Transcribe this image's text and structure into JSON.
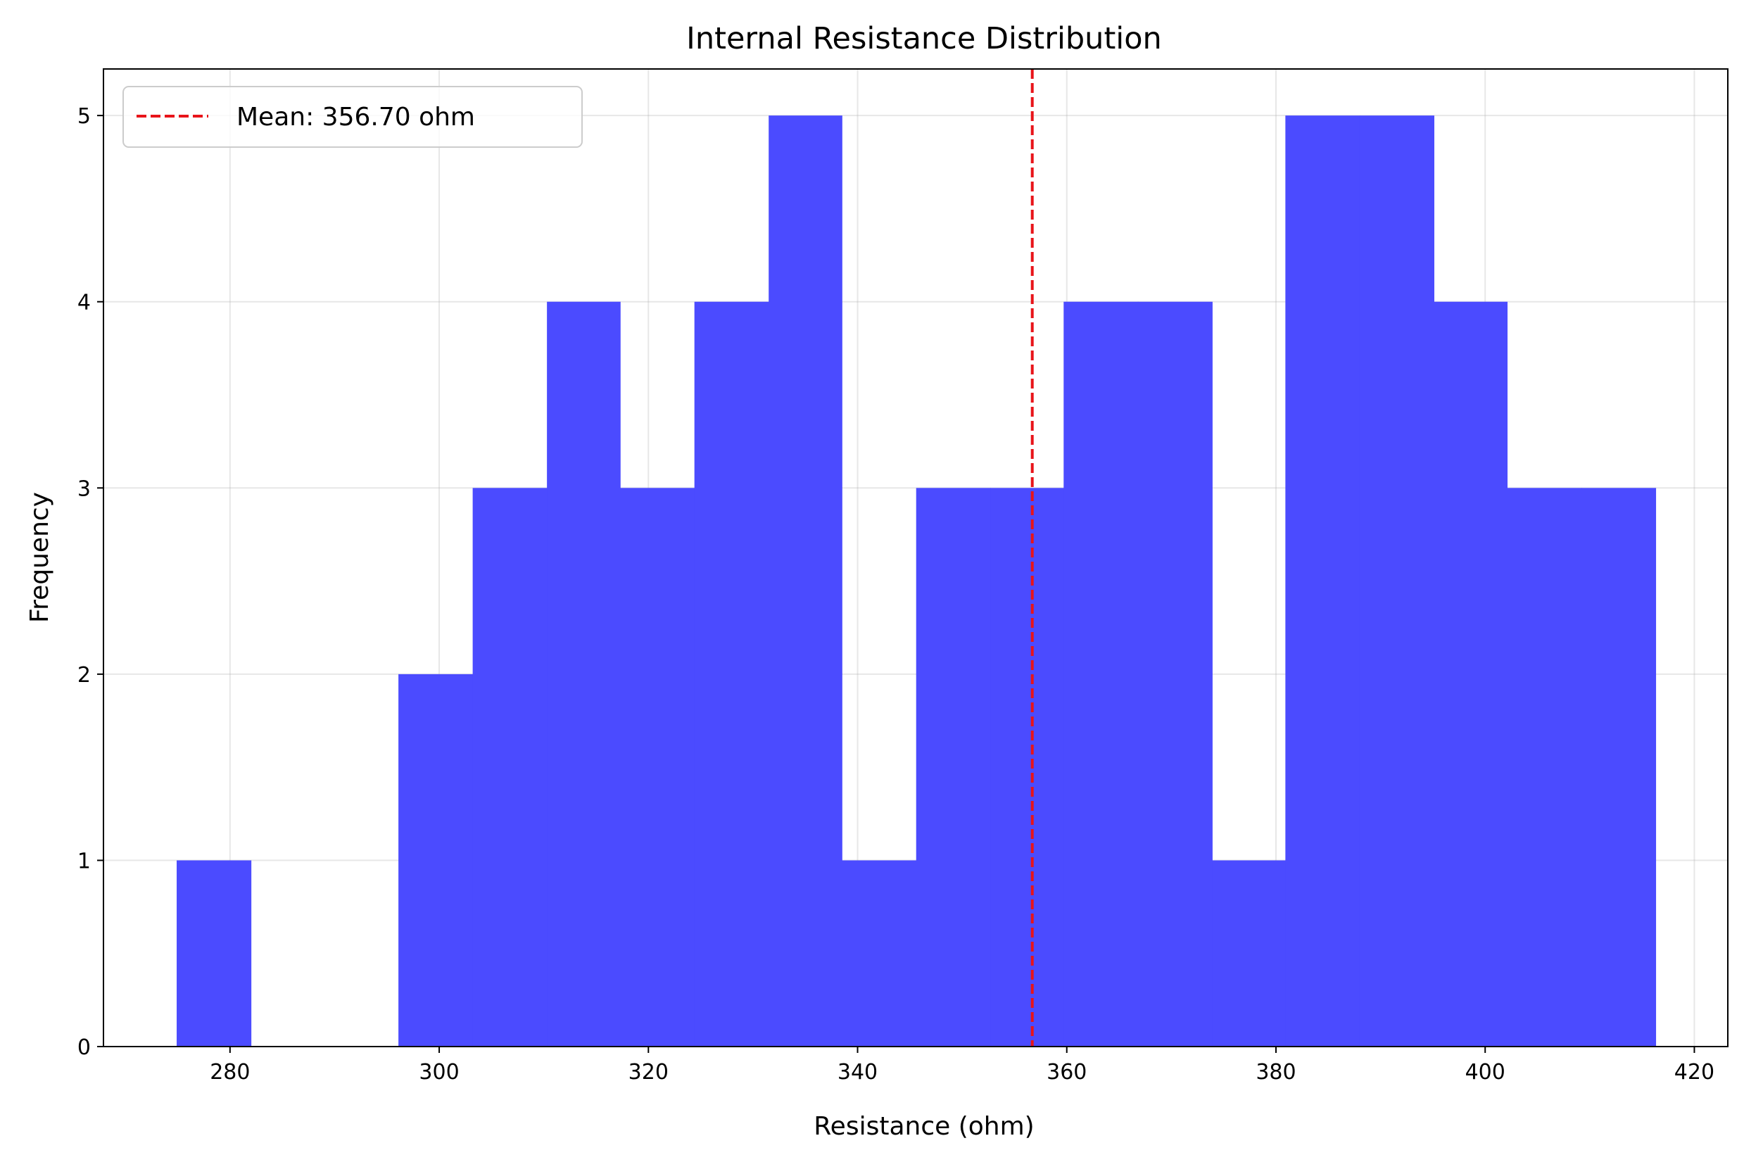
{
  "chart_data": {
    "type": "bar",
    "title": "Internal Resistance Distribution",
    "xlabel": "Resistance (ohm)",
    "ylabel": "Frequency",
    "xlim": [
      267.9,
      423.2
    ],
    "ylim": [
      0,
      5.25
    ],
    "xticks": [
      280,
      300,
      320,
      340,
      360,
      380,
      400,
      420
    ],
    "yticks": [
      0,
      1,
      2,
      3,
      4,
      5
    ],
    "grid": true,
    "bar_color": "#4b4bff",
    "bins": [
      {
        "x0": 274.9,
        "x1": 282.0,
        "count": 1
      },
      {
        "x0": 282.0,
        "x1": 289.0,
        "count": 0
      },
      {
        "x0": 289.0,
        "x1": 296.1,
        "count": 0
      },
      {
        "x0": 296.1,
        "x1": 303.2,
        "count": 2
      },
      {
        "x0": 303.2,
        "x1": 310.3,
        "count": 3
      },
      {
        "x0": 310.3,
        "x1": 317.3,
        "count": 4
      },
      {
        "x0": 317.3,
        "x1": 324.4,
        "count": 3
      },
      {
        "x0": 324.4,
        "x1": 331.5,
        "count": 4
      },
      {
        "x0": 331.5,
        "x1": 338.5,
        "count": 5
      },
      {
        "x0": 338.5,
        "x1": 345.6,
        "count": 1
      },
      {
        "x0": 345.6,
        "x1": 352.7,
        "count": 3
      },
      {
        "x0": 352.7,
        "x1": 359.7,
        "count": 3
      },
      {
        "x0": 359.7,
        "x1": 366.8,
        "count": 4
      },
      {
        "x0": 366.8,
        "x1": 373.9,
        "count": 4
      },
      {
        "x0": 373.9,
        "x1": 380.9,
        "count": 1
      },
      {
        "x0": 380.9,
        "x1": 388.0,
        "count": 5
      },
      {
        "x0": 388.0,
        "x1": 395.1,
        "count": 5
      },
      {
        "x0": 395.1,
        "x1": 402.1,
        "count": 4
      },
      {
        "x0": 402.1,
        "x1": 409.2,
        "count": 3
      },
      {
        "x0": 409.2,
        "x1": 416.3,
        "count": 3
      }
    ],
    "mean_line": {
      "x": 356.7,
      "color": "#e8141a",
      "label": "Mean: 356.70 ohm"
    },
    "legend_placement": "top-left"
  }
}
